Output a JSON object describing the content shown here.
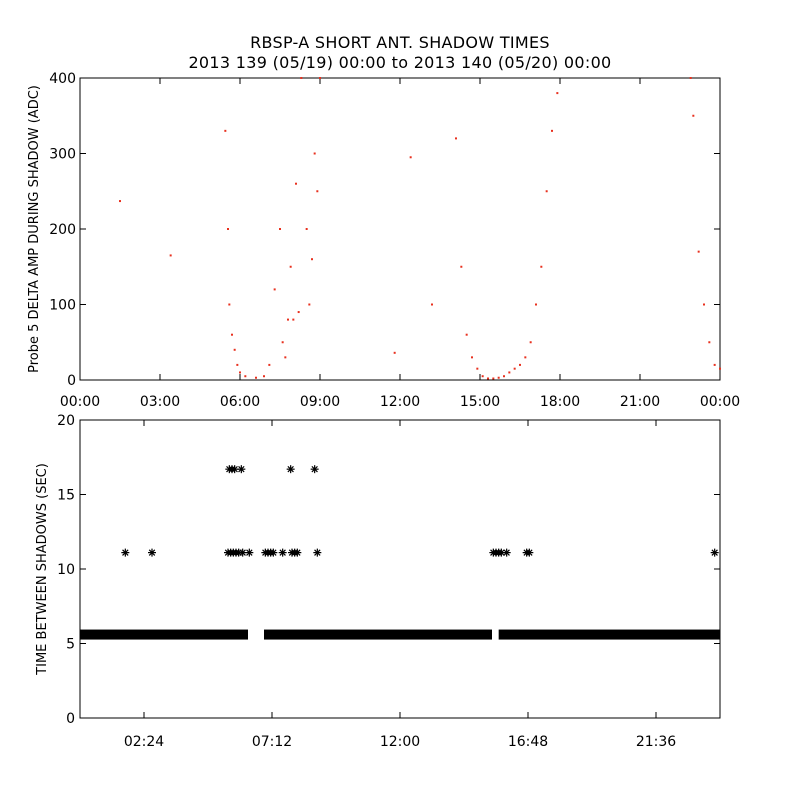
{
  "title_line1": "RBSP-A SHORT ANT. SHADOW TIMES",
  "title_line2": "2013 139 (05/19) 00:00 to 2013 140 (05/20) 00:00",
  "colors": {
    "top_series": "#e8301e",
    "bottom_series": "#000000",
    "axes": "#000000"
  },
  "chart_data": [
    {
      "type": "scatter",
      "ylabel": "Probe 5 DELTA AMP DURING SHADOW (ADC)",
      "xlim": [
        "00:00",
        "24:00"
      ],
      "ylim": [
        0,
        400
      ],
      "xticks": [
        "00:00",
        "03:00",
        "06:00",
        "09:00",
        "12:00",
        "15:00",
        "18:00",
        "21:00",
        "00:00"
      ],
      "yticks": [
        "0",
        "100",
        "200",
        "300",
        "400"
      ],
      "grid": false,
      "series": [
        {
          "x_hours": [
            1.5,
            3.4,
            11.8,
            12.4,
            13.2,
            5.45,
            5.55,
            5.6,
            5.7,
            5.8,
            5.9,
            6.0,
            6.2,
            6.6,
            6.9,
            7.1,
            7.3,
            7.5,
            7.6,
            7.7,
            7.8,
            7.9,
            8.0,
            8.1,
            8.2,
            8.3,
            8.5,
            8.6,
            8.7,
            8.8,
            8.9,
            9.0,
            14.1,
            14.3,
            14.5,
            14.7,
            14.9,
            15.1,
            15.3,
            15.5,
            15.7,
            15.9,
            16.1,
            16.3,
            16.5,
            16.7,
            16.9,
            17.1,
            17.3,
            17.5,
            17.7,
            17.9,
            22.9,
            23.0,
            23.2,
            23.4,
            23.6,
            23.8,
            24.0
          ],
          "y_values": [
            237,
            165,
            36,
            295,
            100,
            330,
            200,
            100,
            60,
            40,
            20,
            10,
            5,
            3,
            5,
            20,
            120,
            200,
            50,
            30,
            80,
            150,
            80,
            260,
            90,
            400,
            200,
            100,
            160,
            300,
            250,
            400,
            320,
            150,
            60,
            30,
            15,
            5,
            2,
            2,
            3,
            5,
            10,
            15,
            20,
            30,
            50,
            100,
            150,
            250,
            330,
            380,
            400,
            350,
            170,
            100,
            50,
            20,
            15
          ]
        }
      ]
    },
    {
      "type": "scatter",
      "ylabel": "TIME BETWEEN SHADOWS (SEC)",
      "xlim": [
        "00:00",
        "24:00"
      ],
      "ylim": [
        0,
        20
      ],
      "xticks": [
        "02:24",
        "07:12",
        "12:00",
        "16:48",
        "21:36"
      ],
      "yticks": [
        "0",
        "5",
        "10",
        "15",
        "20"
      ],
      "grid": false,
      "baseline": {
        "y": 5.6,
        "x_ranges_hours": [
          [
            0.0,
            6.3
          ],
          [
            6.9,
            15.45
          ],
          [
            15.7,
            24.0
          ]
        ]
      },
      "series": [
        {
          "x_hours": [
            1.7,
            2.7,
            5.55,
            5.65,
            5.75,
            5.85,
            5.95,
            6.1,
            6.35,
            6.95,
            7.05,
            7.15,
            7.25,
            7.6,
            7.95,
            8.05,
            8.15,
            8.9,
            15.5,
            15.6,
            15.7,
            15.8,
            16.0,
            16.75,
            16.85,
            23.8
          ],
          "y_values": [
            11.1,
            11.1,
            11.1,
            11.1,
            11.1,
            11.1,
            11.1,
            11.1,
            11.1,
            11.1,
            11.1,
            11.1,
            11.1,
            11.1,
            11.1,
            11.1,
            11.1,
            11.1,
            11.1,
            11.1,
            11.1,
            11.1,
            11.1,
            11.1,
            11.1,
            11.1
          ]
        },
        {
          "x_hours": [
            5.6,
            5.7,
            5.8,
            6.05,
            7.9,
            8.8
          ],
          "y_values": [
            16.7,
            16.7,
            16.7,
            16.7,
            16.7,
            16.7
          ]
        }
      ]
    }
  ]
}
